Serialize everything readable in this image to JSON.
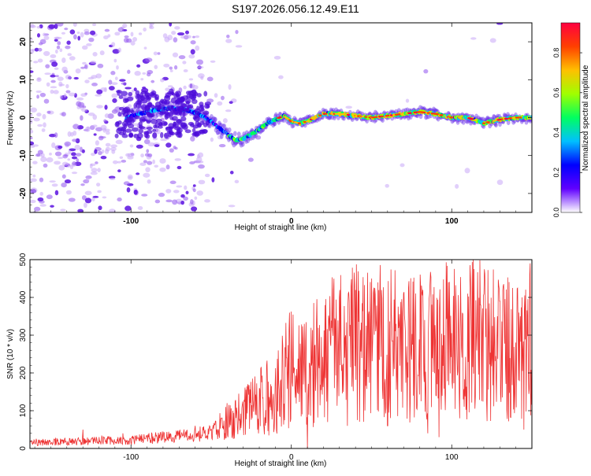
{
  "title": "S197.2026.056.12.49.E11",
  "chart_data": [
    {
      "type": "heatmap",
      "xlabel": "Height of straight line (km)",
      "ylabel": "Frequency (Hz)",
      "xlim": [
        -163,
        150
      ],
      "ylim": [
        -25,
        25
      ],
      "xticks": [
        -100,
        0,
        100
      ],
      "xtick_labels": [
        "-100",
        "0",
        "100"
      ],
      "yticks": [
        -20,
        -10,
        0,
        10,
        20
      ],
      "ytick_labels": [
        "-20",
        "-10",
        "0",
        "10",
        "20"
      ],
      "ridge": {
        "x": [
          -103,
          -95,
          -85,
          -75,
          -65,
          -58,
          -50,
          -44,
          -38,
          -34,
          -30,
          -25,
          -20,
          -15,
          -10,
          -5,
          0,
          5,
          10,
          15,
          20,
          30,
          40,
          50,
          60,
          70,
          80,
          90,
          100,
          110,
          120,
          130,
          140,
          150
        ],
        "y": [
          0,
          1,
          2,
          2.5,
          2,
          1,
          -1,
          -3,
          -5,
          -6,
          -5.5,
          -4.5,
          -3,
          -1.5,
          -0.5,
          0.5,
          -1,
          -1.5,
          -1,
          0,
          1,
          1,
          0.5,
          0,
          0.5,
          1,
          1.5,
          1,
          0,
          0,
          -1.5,
          -0.5,
          0,
          0
        ]
      },
      "colorbar": {
        "label": "Normalized spectral amplitude",
        "range": [
          0,
          0.95
        ],
        "ticks": [
          0.0,
          0.2,
          0.4,
          0.6,
          0.8
        ],
        "tick_labels": [
          "0.0",
          "0.2",
          "0.4",
          "0.6",
          "0.8"
        ],
        "colors": [
          "#ffffff",
          "#6000ff",
          "#0000ff",
          "#00c0ff",
          "#00ff60",
          "#a0ff00",
          "#ffc000",
          "#ff4000",
          "#ff0040"
        ]
      }
    },
    {
      "type": "line",
      "xlabel": "Height of straight line (km)",
      "ylabel": "SNR (10 * v/v)",
      "xlim": [
        -163,
        150
      ],
      "ylim": [
        0,
        500
      ],
      "xticks": [
        -100,
        0,
        100
      ],
      "xtick_labels": [
        "-100",
        "0",
        "100"
      ],
      "yticks": [
        0,
        100,
        200,
        300,
        400,
        500
      ],
      "ytick_labels": [
        "0",
        "100",
        "200",
        "300",
        "400",
        "500"
      ],
      "series": [
        {
          "name": "SNR",
          "color": "#ee3333",
          "envelope_x": [
            -163,
            -120,
            -100,
            -80,
            -60,
            -50,
            -40,
            -30,
            -20,
            -10,
            -5,
            0,
            5,
            10,
            20,
            30,
            40,
            50,
            60,
            70,
            80,
            90,
            100,
            110,
            120,
            130,
            140,
            150
          ],
          "envelope_mean": [
            15,
            20,
            22,
            30,
            35,
            45,
            65,
            90,
            120,
            150,
            180,
            215,
            220,
            210,
            255,
            270,
            280,
            275,
            285,
            270,
            270,
            280,
            285,
            290,
            285,
            280,
            270,
            270
          ],
          "peaks": [
            [
              -130,
              50
            ],
            [
              -105,
              40
            ],
            [
              -60,
              60
            ],
            [
              -40,
              120
            ],
            [
              -20,
              160
            ],
            [
              -3,
              240
            ],
            [
              8,
              330
            ],
            [
              30,
              400
            ],
            [
              50,
              450
            ],
            [
              70,
              410
            ],
            [
              82,
              420
            ],
            [
              92,
              450
            ],
            [
              98,
              440
            ],
            [
              110,
              410
            ],
            [
              118,
              380
            ],
            [
              130,
              390
            ],
            [
              142,
              360
            ],
            [
              149,
              490
            ]
          ],
          "troughs": [
            [
              10,
              0
            ],
            [
              35,
              60
            ],
            [
              60,
              60
            ],
            [
              85,
              40
            ],
            [
              92,
              30
            ],
            [
              105,
              80
            ],
            [
              145,
              50
            ]
          ]
        }
      ]
    }
  ]
}
